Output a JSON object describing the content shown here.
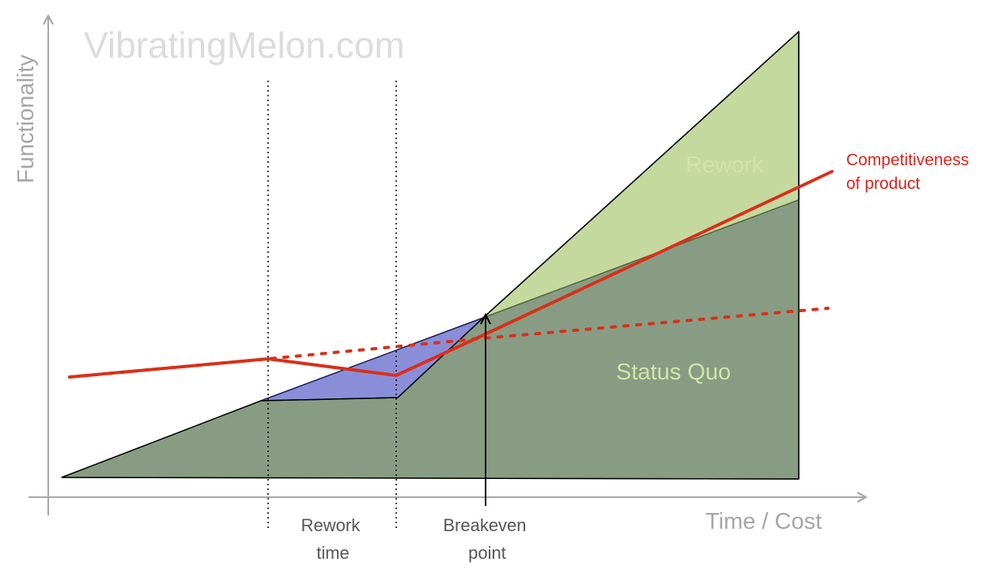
{
  "watermark": "VibratingMelon.com",
  "axes": {
    "y_title": "Functionality",
    "x_title": "Time / Cost"
  },
  "regions": {
    "rework": "Rework",
    "status_quo": "Status Quo"
  },
  "markers": {
    "rework_time": [
      "Rework",
      "time"
    ],
    "breakeven": [
      "Breakeven",
      "point"
    ]
  },
  "series": {
    "competitiveness": [
      "Competitiveness",
      "of product"
    ]
  },
  "colors": {
    "rework_fill": "#c5d99e",
    "status_quo_fill": "#889c84",
    "rework_time_fill": "#8a8ed8",
    "competitiveness_line": "#d9301a",
    "axis": "#a6a6a6"
  }
}
